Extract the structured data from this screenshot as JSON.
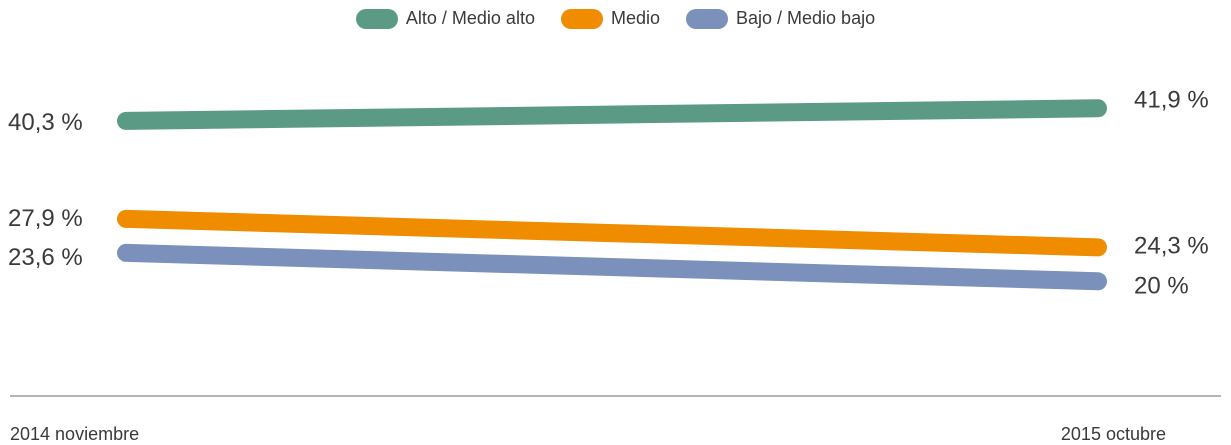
{
  "chart_data": {
    "type": "line",
    "x": [
      "2014 noviembre",
      "2015 octubre"
    ],
    "series": [
      {
        "name": "Alto / Medio alto",
        "values": [
          40.3,
          41.9
        ],
        "labels": [
          "40,3 %",
          "41,9 %"
        ],
        "color": "#5b9a85"
      },
      {
        "name": "Medio",
        "values": [
          27.9,
          24.3
        ],
        "labels": [
          "27,9 %",
          "24,3 %"
        ],
        "color": "#ef8c00"
      },
      {
        "name": "Bajo / Medio bajo",
        "values": [
          23.6,
          20.0
        ],
        "labels": [
          "23,6 %",
          "20 %"
        ],
        "color": "#7b90bb"
      }
    ],
    "grid": false,
    "legend": "top-center"
  }
}
